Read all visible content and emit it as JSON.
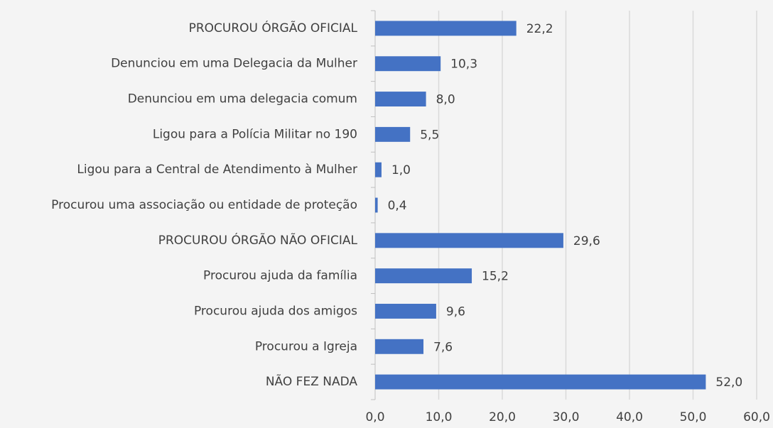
{
  "chart_data": {
    "type": "barh",
    "categories": [
      "PROCUROU ÓRGÃO OFICIAL",
      "Denunciou em uma Delegacia da Mulher",
      "Denunciou em uma delegacia comum",
      "Ligou para a Polícia Militar no 190",
      "Ligou para a Central de Atendimento à Mulher",
      "Procurou uma associação ou entidade de proteção",
      "PROCUROU ÓRGÃO NÃO OFICIAL",
      "Procurou ajuda da família",
      "Procurou ajuda dos amigos",
      "Procurou a Igreja",
      "NÃO FEZ NADA"
    ],
    "values": [
      22.2,
      10.3,
      8.0,
      5.5,
      1.0,
      0.4,
      29.6,
      15.2,
      9.6,
      7.6,
      52.0
    ],
    "value_labels": [
      "22,2",
      "10,3",
      "8,0",
      "5,5",
      "1,0",
      "0,4",
      "29,6",
      "15,2",
      "9,6",
      "7,6",
      "52,0"
    ],
    "color": "#4472c4",
    "xlim": [
      0,
      60
    ],
    "xticks": [
      {
        "value": 0,
        "label": "0,0"
      },
      {
        "value": 10,
        "label": "10,0"
      },
      {
        "value": 20,
        "label": "20,0"
      },
      {
        "value": 30,
        "label": "30,0"
      },
      {
        "value": 40,
        "label": "40,0"
      },
      {
        "value": 50,
        "label": "50,0"
      },
      {
        "value": 60,
        "label": "60,0"
      }
    ],
    "grid": true
  }
}
